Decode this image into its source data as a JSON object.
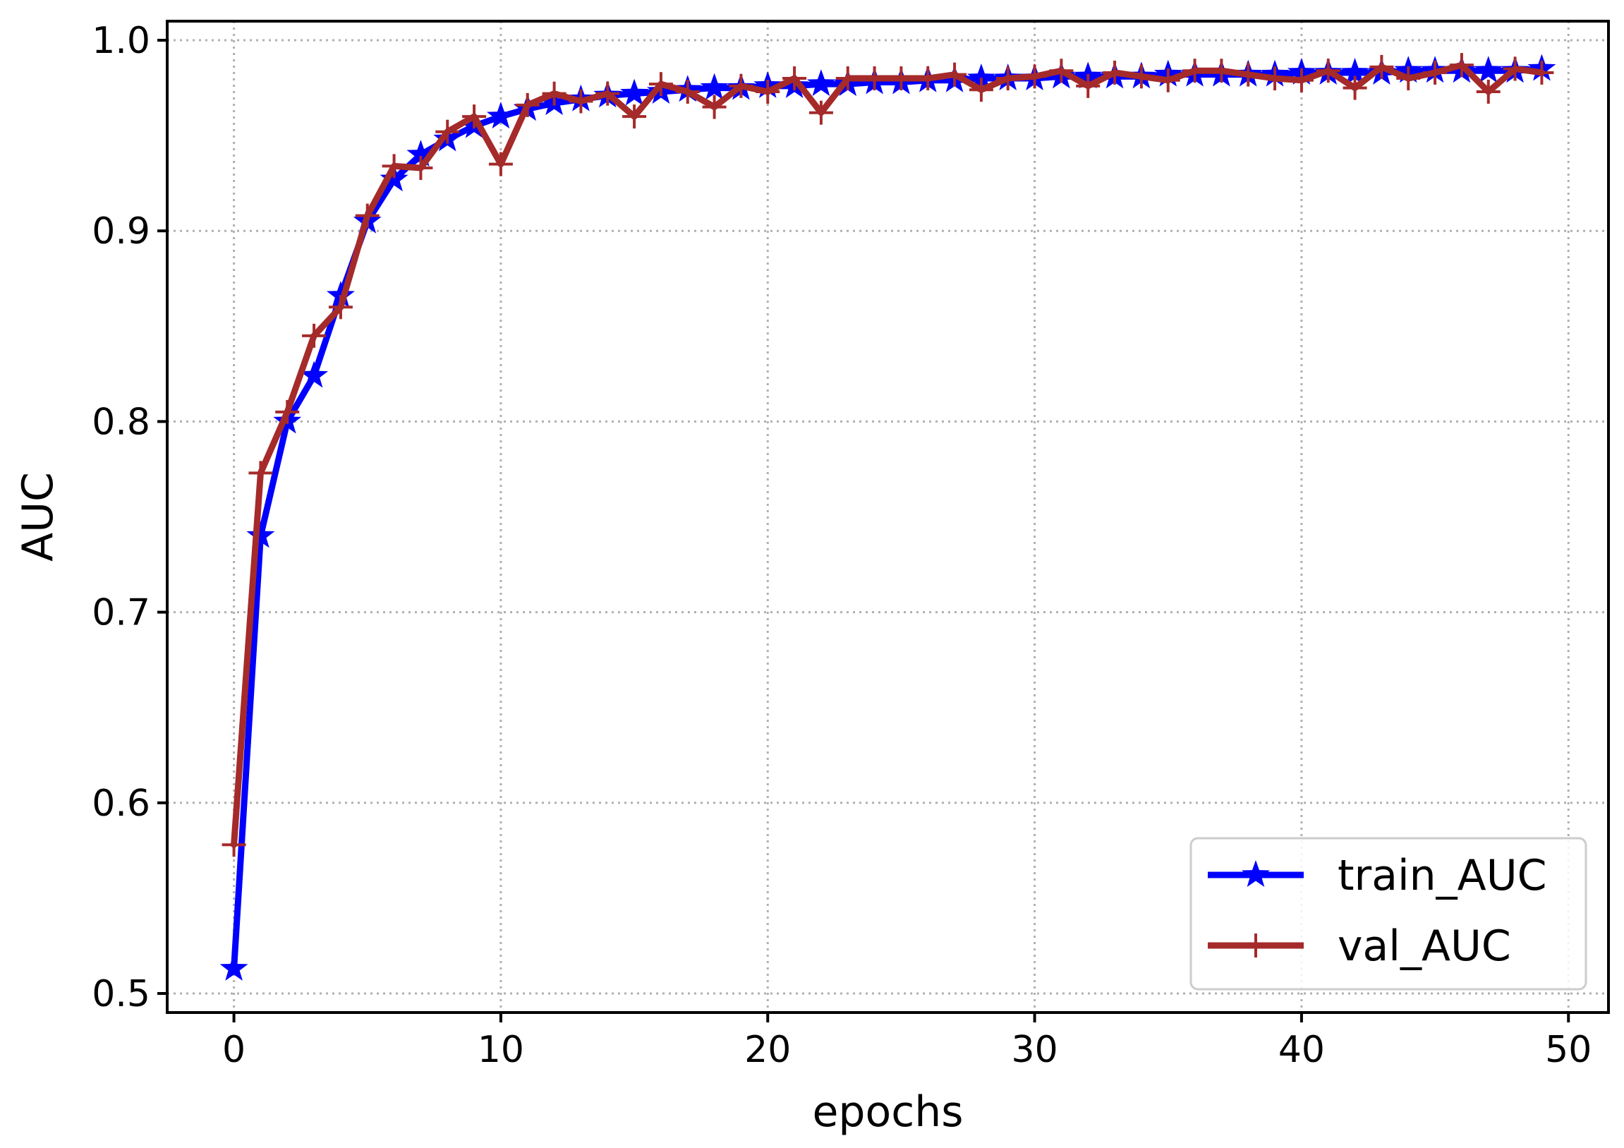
{
  "chart_data": {
    "type": "line",
    "xlabel": "epochs",
    "ylabel": "AUC",
    "xlim": [
      -2.5,
      51.5
    ],
    "ylim": [
      0.49,
      1.01
    ],
    "xticks": [
      0,
      10,
      20,
      30,
      40,
      50
    ],
    "xtick_labels": [
      "0",
      "10",
      "20",
      "30",
      "40",
      "50"
    ],
    "yticks": [
      0.5,
      0.6,
      0.7,
      0.8,
      0.9,
      1.0
    ],
    "ytick_labels": [
      "0.5",
      "0.6",
      "0.7",
      "0.8",
      "0.9",
      "1.0"
    ],
    "grid": true,
    "legend_position": "lower-right",
    "x": [
      0,
      1,
      2,
      3,
      4,
      5,
      6,
      7,
      8,
      9,
      10,
      11,
      12,
      13,
      14,
      15,
      16,
      17,
      18,
      19,
      20,
      21,
      22,
      23,
      24,
      25,
      26,
      27,
      28,
      29,
      30,
      31,
      32,
      33,
      34,
      35,
      36,
      37,
      38,
      39,
      40,
      41,
      42,
      43,
      44,
      45,
      46,
      47,
      48,
      49
    ],
    "series": [
      {
        "name": "train_AUC",
        "color": "#0000ff",
        "marker": "star",
        "values": [
          0.513,
          0.74,
          0.8,
          0.824,
          0.866,
          0.905,
          0.927,
          0.94,
          0.948,
          0.955,
          0.96,
          0.964,
          0.967,
          0.969,
          0.971,
          0.972,
          0.973,
          0.974,
          0.975,
          0.975,
          0.976,
          0.976,
          0.977,
          0.977,
          0.978,
          0.978,
          0.979,
          0.979,
          0.98,
          0.98,
          0.98,
          0.981,
          0.981,
          0.981,
          0.981,
          0.982,
          0.982,
          0.982,
          0.982,
          0.982,
          0.983,
          0.983,
          0.983,
          0.983,
          0.984,
          0.984,
          0.984,
          0.984,
          0.984,
          0.985
        ]
      },
      {
        "name": "val_AUC",
        "color": "#a52a2a",
        "marker": "plus",
        "values": [
          0.578,
          0.773,
          0.805,
          0.845,
          0.86,
          0.908,
          0.934,
          0.933,
          0.952,
          0.96,
          0.935,
          0.966,
          0.972,
          0.968,
          0.972,
          0.96,
          0.977,
          0.973,
          0.965,
          0.976,
          0.973,
          0.98,
          0.962,
          0.98,
          0.98,
          0.98,
          0.98,
          0.982,
          0.974,
          0.98,
          0.981,
          0.984,
          0.976,
          0.983,
          0.981,
          0.979,
          0.984,
          0.984,
          0.982,
          0.98,
          0.979,
          0.984,
          0.975,
          0.986,
          0.98,
          0.983,
          0.987,
          0.973,
          0.985,
          0.983
        ]
      }
    ]
  }
}
